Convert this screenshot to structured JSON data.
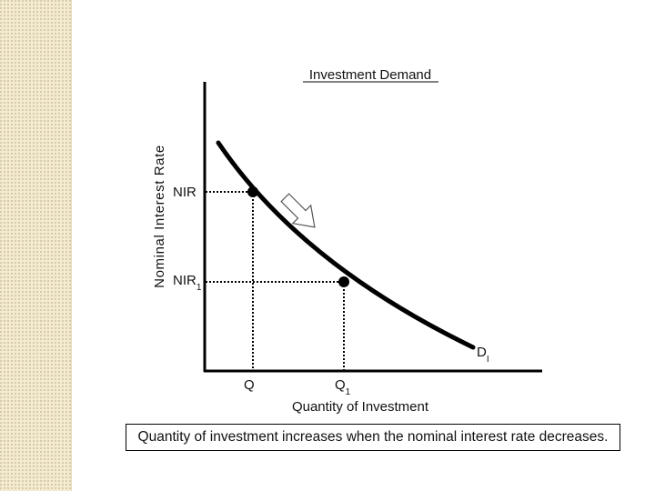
{
  "slide": {
    "caption": "Quantity of investment increases when the nominal interest rate decreases."
  },
  "diagram": {
    "title": "Investment Demand",
    "y_axis_label": "Nominal Interest Rate",
    "x_axis_label": "Quantity of Investment",
    "y_labels": {
      "rate": "NIR",
      "rate1_main": "NIR",
      "rate1_sub": "1"
    },
    "x_labels": {
      "q": "Q",
      "q1_main": "Q",
      "q1_sub": "1"
    },
    "curve_label": {
      "main": "D",
      "sub": "I"
    },
    "colors": {
      "line": "#000000",
      "arrow_fill": "#ffffff"
    }
  }
}
